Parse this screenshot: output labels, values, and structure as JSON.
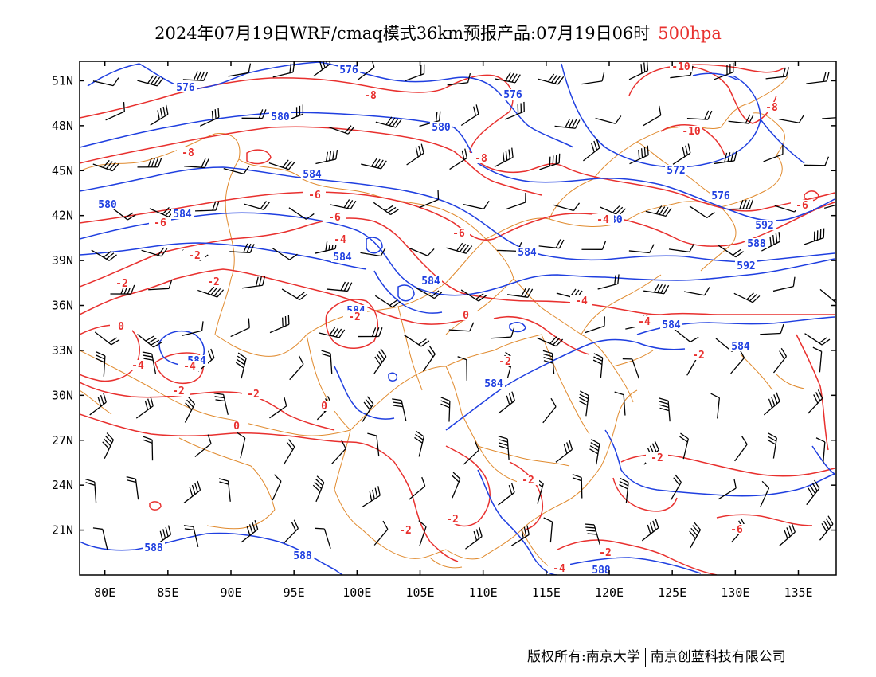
{
  "title": {
    "text": "2024年07月19日WRF/cmaq模式36km预报产品:07月19日06时",
    "level": "500hpa",
    "level_color": "#e8302e"
  },
  "axes": {
    "lon_labels": [
      "80E",
      "85E",
      "90E",
      "95E",
      "100E",
      "105E",
      "110E",
      "115E",
      "120E",
      "125E",
      "130E",
      "135E"
    ],
    "lon_values": [
      80,
      85,
      90,
      95,
      100,
      105,
      110,
      115,
      120,
      125,
      130,
      135
    ],
    "lat_labels": [
      "51N",
      "48N",
      "45N",
      "42N",
      "39N",
      "36N",
      "33N",
      "30N",
      "27N",
      "24N",
      "21N"
    ],
    "lat_values": [
      51,
      48,
      45,
      42,
      39,
      36,
      33,
      30,
      27,
      24,
      21
    ],
    "lon_range": [
      78,
      138
    ],
    "lat_range": [
      18,
      52.3
    ]
  },
  "colors": {
    "height_contour": "#1f3fe0",
    "temperature_contour": "#e8302e",
    "boundaries": "#e08a2e",
    "wind_barbs": "#000000"
  },
  "height_contour_labels": [
    "576",
    "576",
    "576",
    "580",
    "580",
    "580",
    "584",
    "584",
    "584",
    "584",
    "584",
    "584",
    "584",
    "584",
    "584",
    "584",
    "588",
    "588",
    "588",
    "588",
    "592",
    "592",
    "572",
    "576",
    "580"
  ],
  "temperature_contour_labels": [
    "-8",
    "-8",
    "-8",
    "-6",
    "-6",
    "-6",
    "-6",
    "-4",
    "-2",
    "-2",
    "-2",
    "-2",
    "0",
    "0",
    "-4",
    "-4",
    "-2",
    "-2",
    "0",
    "0",
    "-2",
    "-2",
    "-2",
    "-2",
    "-2",
    "-10",
    "-10",
    "-8",
    "-6",
    "-4",
    "-4",
    "-4",
    "-2",
    "-2",
    "-6",
    "-4"
  ],
  "copyright": {
    "left": "版权所有:南京大学",
    "right": "南京创蓝科技有限公司"
  }
}
